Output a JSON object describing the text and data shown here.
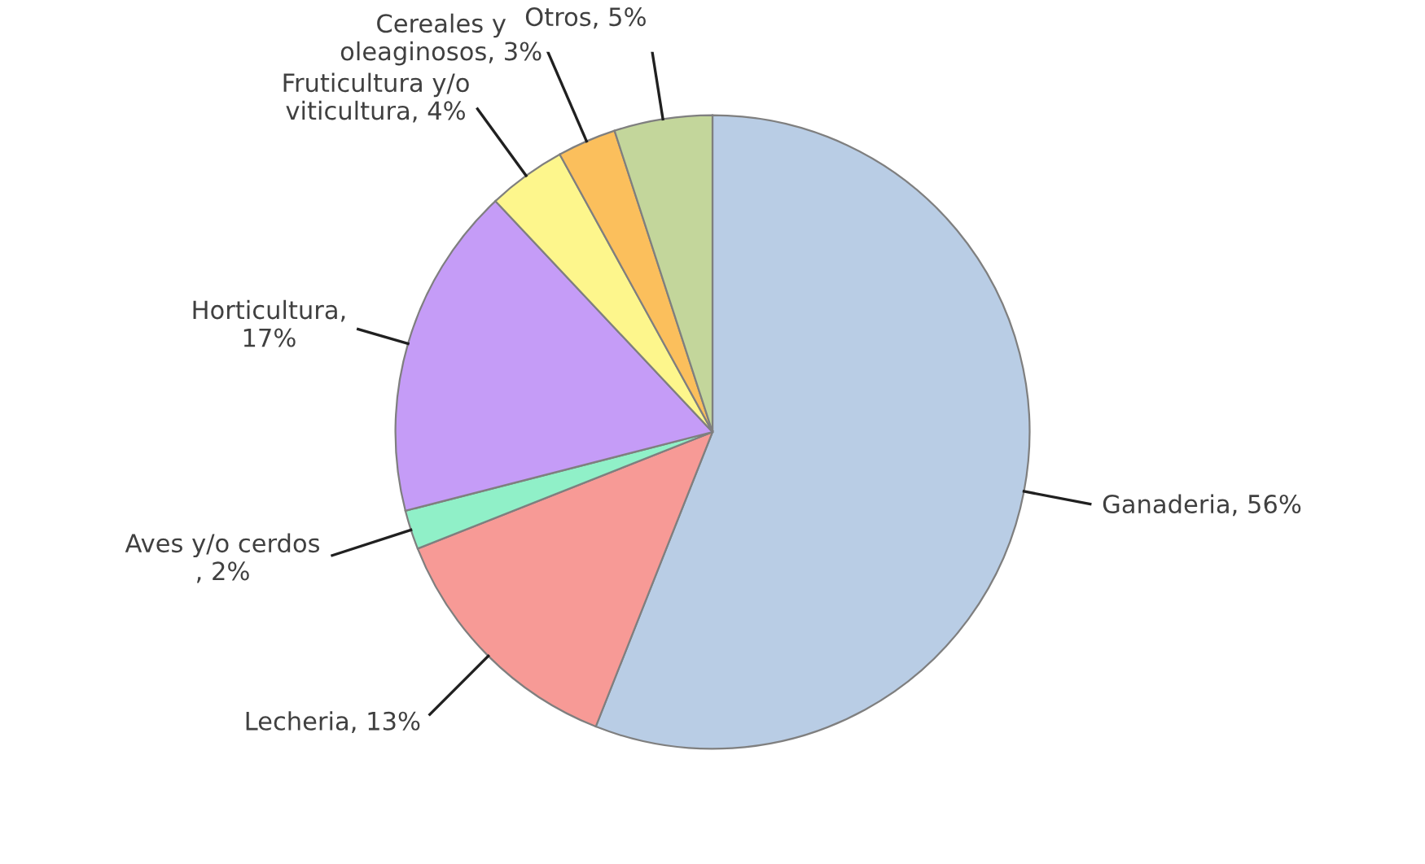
{
  "chart_data": {
    "type": "pie",
    "categories": [
      "Ganaderia, 56%",
      "Lecheria, 13%",
      "Aves y/o cerdos\n, 2%",
      "Horticultura,\n17%",
      "Fruticultura y/o\nviticultura, 4%",
      "Cereales y\noleaginosos, 3%",
      "Otros, 5%"
    ],
    "values": [
      56,
      13,
      2,
      17,
      4,
      3,
      5
    ],
    "colors": [
      "#b9cde5",
      "#f79a96",
      "#90f0c8",
      "#c59cf7",
      "#fdf68c",
      "#fbbf5c",
      "#c3d69b"
    ],
    "legend": false
  }
}
